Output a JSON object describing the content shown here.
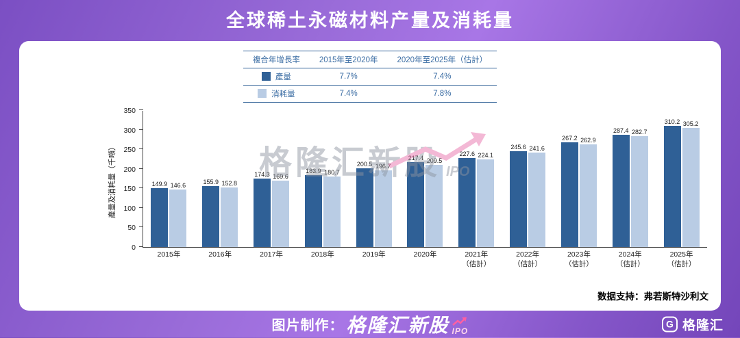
{
  "page": {
    "title": "全球稀土永磁材料产量及消耗量",
    "data_support": "数据支持：弗若斯特沙利文",
    "watermark": {
      "text": "格隆汇新股",
      "sub": "IPO"
    },
    "footer": {
      "credit_prefix": "图片制作：",
      "brand": "格隆汇新股",
      "brand_sub": "IPO",
      "logo_letter": "G",
      "logo_text": "格隆汇"
    }
  },
  "legend_table": {
    "header": [
      "複合年增長率",
      "2015年至2020年",
      "2020年至2025年（估計）"
    ],
    "rows": [
      {
        "label": "產量",
        "swatch": "#2f6096",
        "values": [
          "7.7%",
          "7.4%"
        ]
      },
      {
        "label": "消耗量",
        "swatch": "#b9cce4",
        "values": [
          "7.4%",
          "7.8%"
        ]
      }
    ]
  },
  "chart_data": {
    "type": "bar",
    "categories": [
      "2015年",
      "2016年",
      "2017年",
      "2018年",
      "2019年",
      "2020年",
      "2021年（估計）",
      "2022年（估計）",
      "2023年（估計）",
      "2024年（估計）",
      "2025年（估計）"
    ],
    "series": [
      {
        "name": "產量",
        "color": "#2f6096",
        "values": [
          149.9,
          155.9,
          174.3,
          183.9,
          200.5,
          217.4,
          227.6,
          245.6,
          267.2,
          287.4,
          310.2
        ]
      },
      {
        "name": "消耗量",
        "color": "#b9cce4",
        "values": [
          146.6,
          152.8,
          169.6,
          180.7,
          196.7,
          209.5,
          224.1,
          241.6,
          262.9,
          282.7,
          305.2
        ]
      }
    ],
    "ylabel": "產量及消耗量（千噸）",
    "ylim": [
      0,
      350
    ],
    "yticks": [
      0,
      50,
      100,
      150,
      200,
      250,
      300,
      350
    ],
    "grid": false,
    "legend_position": "top-table"
  }
}
